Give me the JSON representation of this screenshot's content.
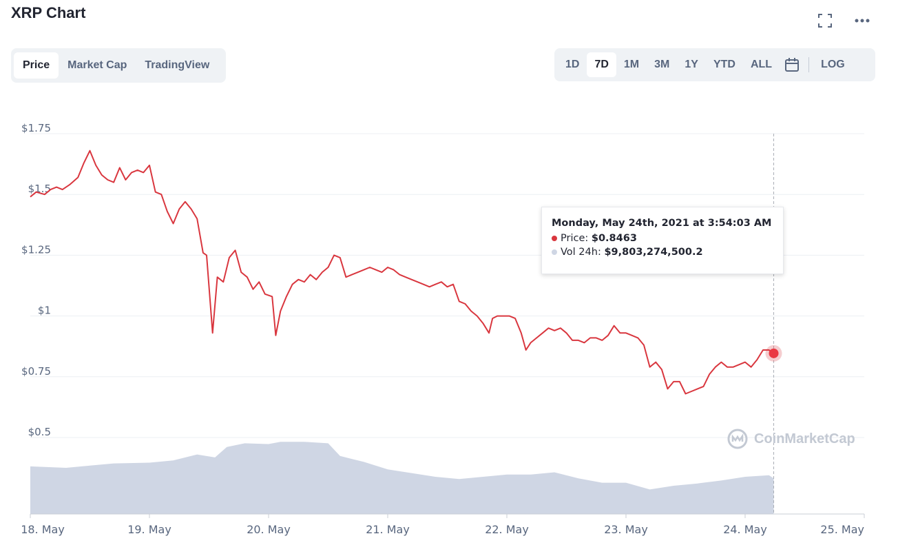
{
  "header": {
    "title": "XRP Chart"
  },
  "icons": {
    "fullscreen": "fullscreen-icon",
    "more": "more-icon",
    "calendar": "calendar-icon",
    "logo": "coinmarketcap-logo-icon"
  },
  "tabs": [
    {
      "label": "Price",
      "active": true
    },
    {
      "label": "Market Cap",
      "active": false
    },
    {
      "label": "TradingView",
      "active": false
    }
  ],
  "ranges": [
    {
      "label": "1D",
      "active": false
    },
    {
      "label": "7D",
      "active": true
    },
    {
      "label": "1M",
      "active": false
    },
    {
      "label": "3M",
      "active": false
    },
    {
      "label": "1Y",
      "active": false
    },
    {
      "label": "YTD",
      "active": false
    },
    {
      "label": "ALL",
      "active": false
    }
  ],
  "log_label": "LOG",
  "tooltip": {
    "title": "Monday, May 24th, 2021 at 3:54:03 AM",
    "price_label": "Price:",
    "price_value": "$0.8463",
    "vol_label": "Vol 24h:",
    "vol_value": "$9,803,274,500.2"
  },
  "watermark": "CoinMarketCap",
  "colors": {
    "price_line": "#d9363e",
    "volume": "#cfd6e4",
    "grid": "#eceff3",
    "text_muted": "#58667e"
  },
  "chart_data": {
    "type": "line",
    "title": "",
    "xlabel": "",
    "ylabel": "",
    "y_ticks": [
      "$1.75",
      "$1.5",
      "$1.25",
      "$1",
      "$0.75",
      "$0.5"
    ],
    "y_tick_values": [
      1.75,
      1.5,
      1.25,
      1.0,
      0.75,
      0.5
    ],
    "x_ticks": [
      "18. May",
      "19. May",
      "20. May",
      "21. May",
      "22. May",
      "23. May",
      "24. May",
      "25. May"
    ],
    "xlim_days": [
      0,
      7
    ],
    "ylim": [
      0.5,
      1.75
    ],
    "grid": true,
    "series": [
      {
        "values": [
          [
            0.0,
            1.49
          ],
          [
            0.05,
            1.51
          ],
          [
            0.12,
            1.5
          ],
          [
            0.17,
            1.52
          ],
          [
            0.22,
            1.53
          ],
          [
            0.27,
            1.52
          ],
          [
            0.33,
            1.54
          ],
          [
            0.4,
            1.57
          ],
          [
            0.45,
            1.63
          ],
          [
            0.5,
            1.68
          ],
          [
            0.55,
            1.62
          ],
          [
            0.6,
            1.58
          ],
          [
            0.65,
            1.56
          ],
          [
            0.7,
            1.55
          ],
          [
            0.75,
            1.61
          ],
          [
            0.8,
            1.56
          ],
          [
            0.85,
            1.59
          ],
          [
            0.9,
            1.6
          ],
          [
            0.95,
            1.59
          ],
          [
            1.0,
            1.62
          ],
          [
            1.05,
            1.51
          ],
          [
            1.1,
            1.5
          ],
          [
            1.15,
            1.43
          ],
          [
            1.2,
            1.38
          ],
          [
            1.25,
            1.44
          ],
          [
            1.3,
            1.47
          ],
          [
            1.35,
            1.44
          ],
          [
            1.4,
            1.4
          ],
          [
            1.45,
            1.26
          ],
          [
            1.48,
            1.25
          ],
          [
            1.53,
            0.93
          ],
          [
            1.57,
            1.16
          ],
          [
            1.62,
            1.14
          ],
          [
            1.67,
            1.24
          ],
          [
            1.72,
            1.27
          ],
          [
            1.77,
            1.18
          ],
          [
            1.82,
            1.16
          ],
          [
            1.87,
            1.11
          ],
          [
            1.92,
            1.14
          ],
          [
            1.97,
            1.09
          ],
          [
            2.03,
            1.08
          ],
          [
            2.06,
            0.92
          ],
          [
            2.1,
            1.02
          ],
          [
            2.15,
            1.08
          ],
          [
            2.2,
            1.13
          ],
          [
            2.25,
            1.15
          ],
          [
            2.3,
            1.14
          ],
          [
            2.35,
            1.17
          ],
          [
            2.4,
            1.15
          ],
          [
            2.45,
            1.18
          ],
          [
            2.5,
            1.2
          ],
          [
            2.55,
            1.25
          ],
          [
            2.6,
            1.24
          ],
          [
            2.65,
            1.16
          ],
          [
            2.7,
            1.17
          ],
          [
            2.75,
            1.18
          ],
          [
            2.8,
            1.19
          ],
          [
            2.85,
            1.2
          ],
          [
            2.9,
            1.19
          ],
          [
            2.95,
            1.18
          ],
          [
            3.0,
            1.2
          ],
          [
            3.05,
            1.19
          ],
          [
            3.1,
            1.17
          ],
          [
            3.15,
            1.16
          ],
          [
            3.2,
            1.15
          ],
          [
            3.25,
            1.14
          ],
          [
            3.3,
            1.13
          ],
          [
            3.35,
            1.12
          ],
          [
            3.4,
            1.13
          ],
          [
            3.45,
            1.14
          ],
          [
            3.5,
            1.12
          ],
          [
            3.55,
            1.13
          ],
          [
            3.6,
            1.06
          ],
          [
            3.65,
            1.05
          ],
          [
            3.7,
            1.02
          ],
          [
            3.75,
            1.0
          ],
          [
            3.8,
            0.97
          ],
          [
            3.85,
            0.93
          ],
          [
            3.88,
            0.99
          ],
          [
            3.92,
            1.0
          ],
          [
            3.97,
            1.0
          ],
          [
            4.02,
            1.0
          ],
          [
            4.07,
            0.99
          ],
          [
            4.12,
            0.93
          ],
          [
            4.16,
            0.86
          ],
          [
            4.2,
            0.89
          ],
          [
            4.25,
            0.91
          ],
          [
            4.3,
            0.93
          ],
          [
            4.35,
            0.95
          ],
          [
            4.4,
            0.94
          ],
          [
            4.45,
            0.95
          ],
          [
            4.5,
            0.93
          ],
          [
            4.55,
            0.9
          ],
          [
            4.6,
            0.9
          ],
          [
            4.65,
            0.89
          ],
          [
            4.7,
            0.91
          ],
          [
            4.75,
            0.91
          ],
          [
            4.8,
            0.9
          ],
          [
            4.85,
            0.92
          ],
          [
            4.9,
            0.96
          ],
          [
            4.95,
            0.93
          ],
          [
            5.0,
            0.93
          ],
          [
            5.05,
            0.92
          ],
          [
            5.1,
            0.91
          ],
          [
            5.15,
            0.88
          ],
          [
            5.2,
            0.79
          ],
          [
            5.25,
            0.81
          ],
          [
            5.3,
            0.78
          ],
          [
            5.35,
            0.7
          ],
          [
            5.4,
            0.73
          ],
          [
            5.45,
            0.73
          ],
          [
            5.5,
            0.68
          ],
          [
            5.55,
            0.69
          ],
          [
            5.6,
            0.7
          ],
          [
            5.65,
            0.71
          ],
          [
            5.7,
            0.76
          ],
          [
            5.75,
            0.79
          ],
          [
            5.8,
            0.81
          ],
          [
            5.85,
            0.79
          ],
          [
            5.9,
            0.79
          ],
          [
            5.95,
            0.8
          ],
          [
            6.0,
            0.81
          ],
          [
            6.05,
            0.79
          ],
          [
            6.1,
            0.82
          ],
          [
            6.15,
            0.86
          ],
          [
            6.2,
            0.86
          ],
          [
            6.24,
            0.8463
          ]
        ]
      },
      {
        "values": [
          [
            0.0,
            0.64
          ],
          [
            0.3,
            0.62
          ],
          [
            0.5,
            0.65
          ],
          [
            0.7,
            0.68
          ],
          [
            1.0,
            0.69
          ],
          [
            1.2,
            0.72
          ],
          [
            1.4,
            0.8
          ],
          [
            1.55,
            0.76
          ],
          [
            1.65,
            0.9
          ],
          [
            1.8,
            0.95
          ],
          [
            2.0,
            0.94
          ],
          [
            2.1,
            0.97
          ],
          [
            2.3,
            0.97
          ],
          [
            2.5,
            0.95
          ],
          [
            2.6,
            0.78
          ],
          [
            2.8,
            0.7
          ],
          [
            3.0,
            0.6
          ],
          [
            3.2,
            0.55
          ],
          [
            3.4,
            0.5
          ],
          [
            3.6,
            0.47
          ],
          [
            3.8,
            0.5
          ],
          [
            4.0,
            0.53
          ],
          [
            4.2,
            0.53
          ],
          [
            4.4,
            0.56
          ],
          [
            4.6,
            0.48
          ],
          [
            4.8,
            0.42
          ],
          [
            5.0,
            0.42
          ],
          [
            5.2,
            0.33
          ],
          [
            5.4,
            0.38
          ],
          [
            5.6,
            0.41
          ],
          [
            5.8,
            0.45
          ],
          [
            6.0,
            0.5
          ],
          [
            6.2,
            0.52
          ],
          [
            6.24,
            0.48
          ]
        ]
      }
    ],
    "highlight": {
      "x": 6.24,
      "y": 0.8463
    }
  }
}
